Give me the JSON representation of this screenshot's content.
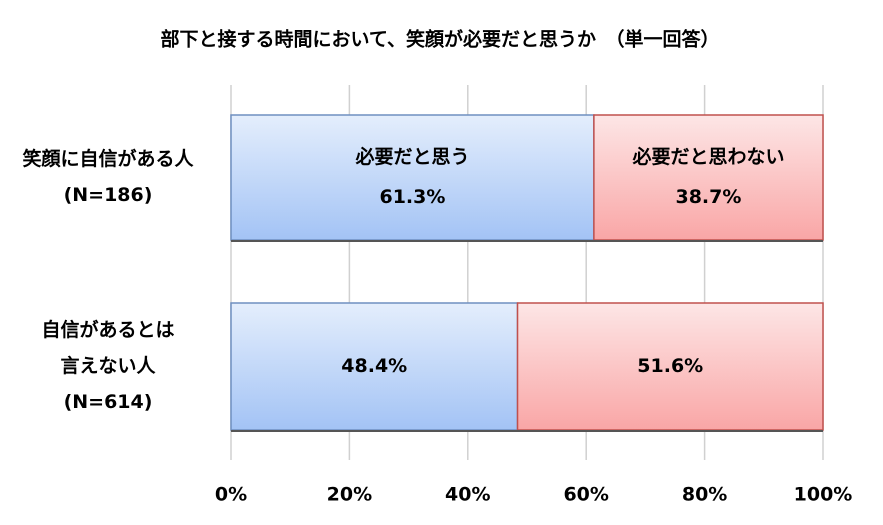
{
  "chart_data": {
    "type": "stacked-barh",
    "title": "部下と接する時間において、笑顔が必要だと思うか　（単一回答）",
    "categories": [
      [
        "笑顔に自信がある人",
        "(N=186)"
      ],
      [
        "自信があるとは",
        "言えない人",
        "(N=614)"
      ]
    ],
    "series": [
      {
        "name": "必要だと思う",
        "color": "#a3c3f5",
        "values": [
          61.3,
          48.4
        ],
        "value_labels": [
          "61.3%",
          "48.4%"
        ]
      },
      {
        "name": "必要だと思わない",
        "color": "#f9a6a6",
        "values": [
          38.7,
          51.6
        ],
        "value_labels": [
          "38.7%",
          "51.6%"
        ]
      }
    ],
    "xlim": [
      0,
      100
    ],
    "xticks": [
      {
        "value": 0,
        "label": "0%"
      },
      {
        "value": 20,
        "label": "20%"
      },
      {
        "value": 40,
        "label": "40%"
      },
      {
        "value": 60,
        "label": "60%"
      },
      {
        "value": 80,
        "label": "80%"
      },
      {
        "value": 100,
        "label": "100%"
      }
    ],
    "grid": true
  }
}
